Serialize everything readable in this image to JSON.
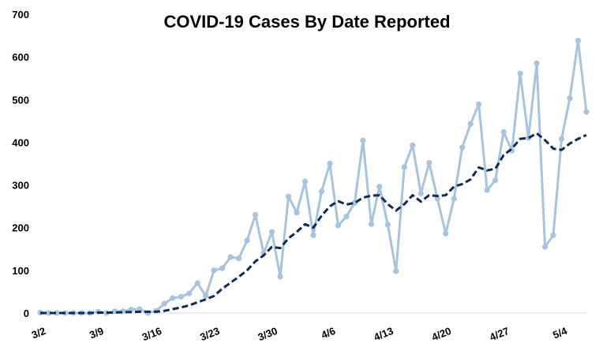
{
  "chart_data": {
    "type": "line",
    "title": "COVID-19 Cases By Date Reported",
    "xlabel": "",
    "ylabel": "",
    "ylim": [
      0,
      700
    ],
    "yticks": [
      0,
      100,
      200,
      300,
      400,
      500,
      600,
      700
    ],
    "start_date": "3/2",
    "xtick_labels": [
      "3/2",
      "3/9",
      "3/16",
      "3/23",
      "3/30",
      "4/6",
      "4/13",
      "4/20",
      "4/27",
      "5/4"
    ],
    "grid": false,
    "legend": "none",
    "series": [
      {
        "style": "solid-with-markers",
        "color": "#a6c4df",
        "values": [
          1,
          0,
          0,
          0,
          0,
          0,
          0,
          3,
          0,
          4,
          4,
          8,
          9,
          0,
          5,
          22,
          35,
          38,
          46,
          70,
          40,
          100,
          105,
          131,
          128,
          170,
          230,
          140,
          190,
          85,
          273,
          235,
          308,
          182,
          285,
          350,
          205,
          226,
          258,
          404,
          208,
          296,
          207,
          98,
          342,
          393,
          280,
          352,
          268,
          186,
          268,
          388,
          443,
          489,
          288,
          311,
          424,
          380,
          561,
          410,
          585,
          155,
          182,
          408,
          503,
          638,
          471
        ]
      },
      {
        "style": "dashed",
        "color": "#0e2a58",
        "values": [
          0,
          0,
          0,
          0,
          0,
          0,
          0,
          1,
          1,
          1,
          2,
          2,
          3,
          3,
          3,
          5,
          9,
          13,
          18,
          25,
          32,
          40,
          57,
          71,
          85,
          100,
          121,
          135,
          155,
          152,
          175,
          190,
          208,
          200,
          228,
          250,
          262,
          254,
          258,
          270,
          275,
          276,
          255,
          240,
          255,
          276,
          261,
          276,
          274,
          276,
          296,
          302,
          313,
          341,
          334,
          338,
          370,
          385,
          408,
          410,
          421,
          405,
          385,
          382,
          397,
          408,
          417
        ]
      }
    ]
  }
}
